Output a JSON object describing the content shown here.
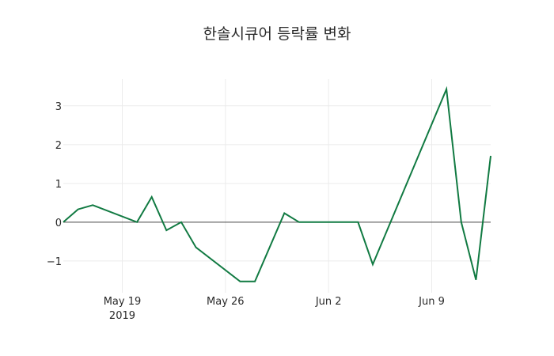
{
  "chart_data": {
    "type": "line",
    "title": "한솔시큐어 등락률 변화",
    "xlabel": "",
    "ylabel": "",
    "x": [
      "2019-05-15",
      "2019-05-16",
      "2019-05-17",
      "2019-05-20",
      "2019-05-21",
      "2019-05-22",
      "2019-05-23",
      "2019-05-24",
      "2019-05-27",
      "2019-05-28",
      "2019-05-30",
      "2019-05-31",
      "2019-06-03",
      "2019-06-04",
      "2019-06-05",
      "2019-06-10",
      "2019-06-11",
      "2019-06-12",
      "2019-06-13"
    ],
    "series": [
      {
        "name": "등락률",
        "color": "#117a42",
        "values": [
          0,
          0.33,
          0.44,
          0,
          0.65,
          -0.21,
          0,
          -0.65,
          -1.53,
          -1.53,
          0.23,
          0,
          0,
          0,
          -1.09,
          3.43,
          0,
          -1.49,
          1.71
        ]
      }
    ],
    "xticks": [
      {
        "date": "2019-05-19",
        "label": "May 19",
        "sublabel": "2019"
      },
      {
        "date": "2019-05-26",
        "label": "May 26",
        "sublabel": ""
      },
      {
        "date": "2019-06-02",
        "label": "Jun 2",
        "sublabel": ""
      },
      {
        "date": "2019-06-09",
        "label": "Jun 9",
        "sublabel": ""
      }
    ],
    "yticks": [
      3,
      2,
      1,
      0,
      -1
    ],
    "ytick_labels": [
      "3",
      "2",
      "1",
      "0",
      "−1"
    ],
    "ylim": [
      -1.82,
      3.69
    ],
    "xlim": [
      "2019-05-15",
      "2019-06-13"
    ],
    "grid": true,
    "zero_line": true,
    "legend": "none"
  }
}
